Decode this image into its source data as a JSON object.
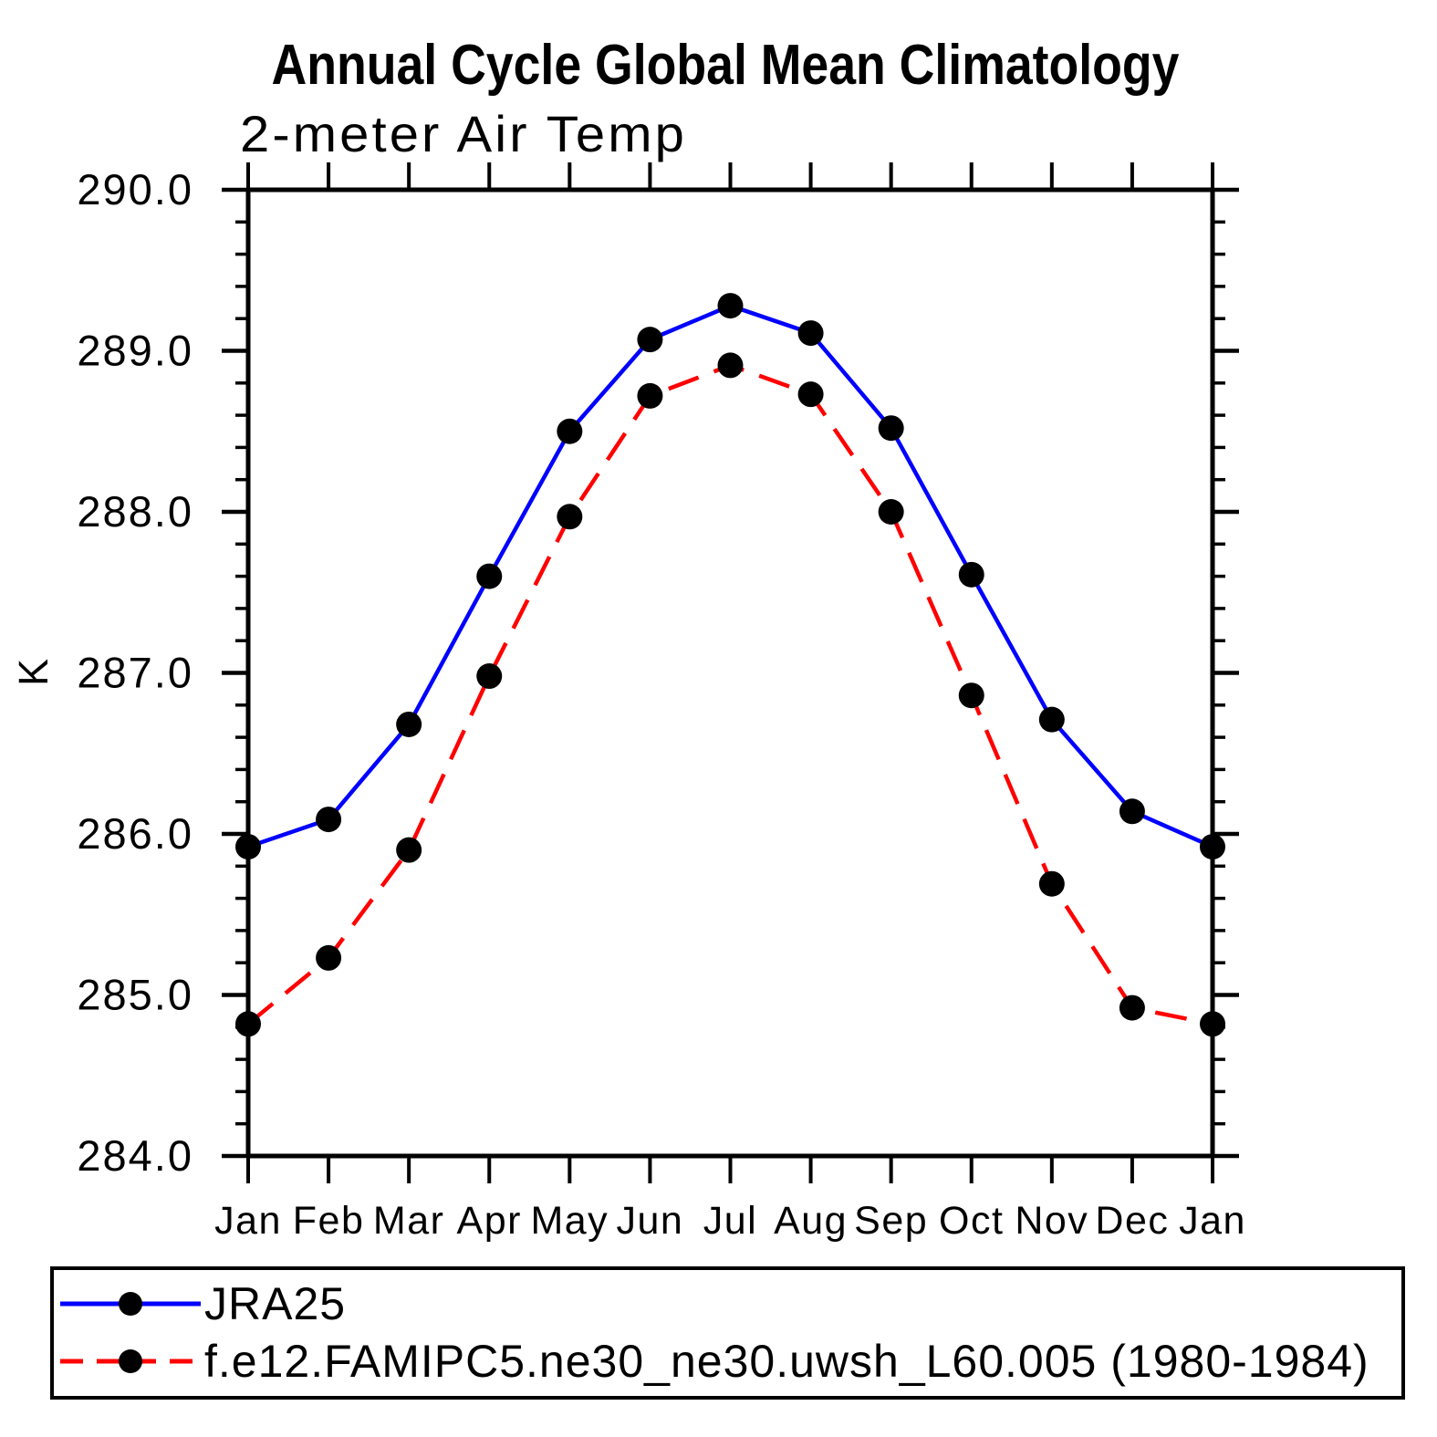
{
  "chart_data": {
    "type": "line",
    "title": "Annual Cycle Global Mean Climatology",
    "subtitle": "2-meter Air Temp",
    "ylabel": "K",
    "xlabel": "",
    "categories": [
      "Jan",
      "Feb",
      "Mar",
      "Apr",
      "May",
      "Jun",
      "Jul",
      "Aug",
      "Sep",
      "Oct",
      "Nov",
      "Dec",
      "Jan"
    ],
    "series": [
      {
        "name": "JRA25",
        "color": "#0000ff",
        "line_style": "solid",
        "marker": "filled-circle",
        "marker_color": "#000000",
        "values": [
          285.92,
          286.09,
          286.68,
          287.6,
          288.5,
          289.07,
          289.28,
          289.11,
          288.52,
          287.61,
          286.71,
          286.14,
          285.92
        ]
      },
      {
        "name": "f.e12.FAMIPC5.ne30_ne30.uwsh_L60.005 (1980-1984)",
        "color": "#ff0000",
        "line_style": "dashed",
        "marker": "filled-circle",
        "marker_color": "#000000",
        "values": [
          284.82,
          285.23,
          285.9,
          286.98,
          287.97,
          288.72,
          288.91,
          288.73,
          288.0,
          286.86,
          285.69,
          284.92,
          284.82
        ]
      }
    ],
    "ylim": [
      284.0,
      290.0
    ],
    "ytick_step": 1.0,
    "ytick_minor_step": 0.2,
    "ytick_labels": [
      "284.0",
      "285.0",
      "286.0",
      "287.0",
      "288.0",
      "289.0",
      "290.0"
    ],
    "grid": false,
    "legend_position": "bottom",
    "axis_color": "#000000",
    "background_color": "#ffffff"
  }
}
